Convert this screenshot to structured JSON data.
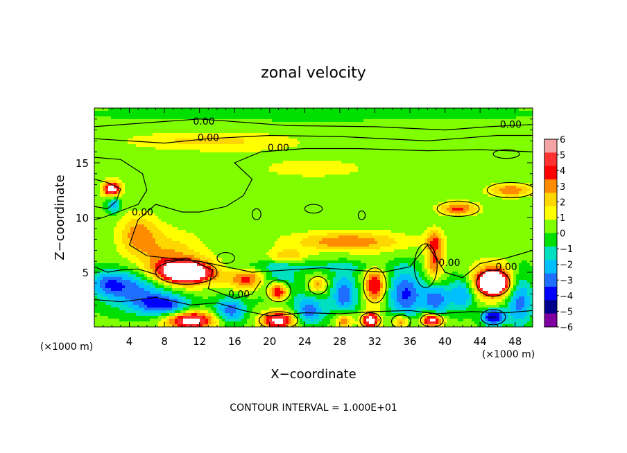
{
  "chart_data": {
    "type": "heatmap",
    "title": "zonal velocity",
    "xlabel": "X−coordinate",
    "ylabel": "Z−coordinate",
    "x_unit": "(×1000 m)",
    "xlim": [
      0,
      50
    ],
    "ylim": [
      0,
      20
    ],
    "xticks": [
      4,
      8,
      12,
      16,
      20,
      24,
      28,
      32,
      36,
      40,
      44,
      48
    ],
    "yticks": [
      5,
      10,
      15
    ],
    "colorbar": {
      "levels": [
        6,
        5,
        4,
        3,
        2,
        1,
        0,
        -1,
        -2,
        -3,
        -4,
        -5,
        -6
      ],
      "labels": [
        "6",
        "5",
        "4",
        "3",
        "2",
        "1",
        "0",
        "−1",
        "−2",
        "−3",
        "−4",
        "−5",
        "−6"
      ],
      "colors": [
        "#f4a4a4",
        "#ff3030",
        "#ff0000",
        "#ff8c00",
        "#ffd700",
        "#ffff00",
        "#7fff00",
        "#00e000",
        "#00e0c0",
        "#00bfff",
        "#1e6fff",
        "#0000ff",
        "#00008b",
        "#8000a0"
      ]
    },
    "contour_label": "0.00",
    "contour_label_positions": [
      [
        12.5,
        18.8
      ],
      [
        13,
        17.3
      ],
      [
        21,
        16.4
      ],
      [
        47.5,
        18.5
      ],
      [
        5.5,
        10.5
      ],
      [
        16.5,
        3.0
      ],
      [
        40.5,
        5.9
      ],
      [
        47,
        5.5
      ]
    ],
    "background_level": 0.3,
    "features": [
      {
        "x": 10.5,
        "z": 5.0,
        "rx": 3.3,
        "rz": 1.0,
        "v": 8
      },
      {
        "x": 8.5,
        "z": 6.0,
        "rx": 4.0,
        "rz": 2.5,
        "v": 3
      },
      {
        "x": 2.0,
        "z": 12.6,
        "rx": 1.0,
        "rz": 0.7,
        "v": 7
      },
      {
        "x": 2.2,
        "z": 11.2,
        "rx": 0.8,
        "rz": 0.9,
        "v": -3
      },
      {
        "x": 5.0,
        "z": 8.5,
        "rx": 2.2,
        "rz": 1.8,
        "v": 3
      },
      {
        "x": 4.5,
        "z": 3.5,
        "rx": 4.0,
        "rz": 1.8,
        "v": -4
      },
      {
        "x": 1.5,
        "z": 4.0,
        "rx": 2.0,
        "rz": 1.0,
        "v": -2.5
      },
      {
        "x": 8.0,
        "z": 2.0,
        "rx": 3.0,
        "rz": 1.0,
        "v": -4.5
      },
      {
        "x": 11.0,
        "z": 0.6,
        "rx": 2.8,
        "rz": 0.8,
        "v": 7
      },
      {
        "x": 15.5,
        "z": 1.5,
        "rx": 1.8,
        "rz": 1.2,
        "v": -4
      },
      {
        "x": 17.5,
        "z": 4.3,
        "rx": 2.2,
        "rz": 1.0,
        "v": 4
      },
      {
        "x": 21.0,
        "z": 3.3,
        "rx": 1.2,
        "rz": 0.9,
        "v": 8
      },
      {
        "x": 21.0,
        "z": 3.8,
        "rx": 2.0,
        "rz": 1.4,
        "v": -4
      },
      {
        "x": 21.0,
        "z": 0.6,
        "rx": 2.0,
        "rz": 0.8,
        "v": 6.5
      },
      {
        "x": 24.5,
        "z": 1.5,
        "rx": 1.8,
        "rz": 1.3,
        "v": -4
      },
      {
        "x": 25.5,
        "z": 3.8,
        "rx": 1.0,
        "rz": 0.7,
        "v": 3
      },
      {
        "x": 28.5,
        "z": 3.0,
        "rx": 1.5,
        "rz": 2.0,
        "v": -4
      },
      {
        "x": 28.5,
        "z": 0.6,
        "rx": 1.0,
        "rz": 0.7,
        "v": 4
      },
      {
        "x": 32.0,
        "z": 3.8,
        "rx": 1.2,
        "rz": 1.6,
        "v": 5
      },
      {
        "x": 31.5,
        "z": 0.6,
        "rx": 1.0,
        "rz": 0.7,
        "v": 7
      },
      {
        "x": 35.5,
        "z": 3.0,
        "rx": 2.0,
        "rz": 2.2,
        "v": -4.5
      },
      {
        "x": 35.0,
        "z": 0.5,
        "rx": 1.0,
        "rz": 0.6,
        "v": 4
      },
      {
        "x": 38.5,
        "z": 0.6,
        "rx": 1.2,
        "rz": 0.6,
        "v": 7
      },
      {
        "x": 39.0,
        "z": 2.5,
        "rx": 1.5,
        "rz": 1.5,
        "v": -4
      },
      {
        "x": 38.8,
        "z": 6.0,
        "rx": 1.0,
        "rz": 1.8,
        "v": 4
      },
      {
        "x": 38.8,
        "z": 8.0,
        "rx": 1.0,
        "rz": 1.0,
        "v": 2.5
      },
      {
        "x": 42.0,
        "z": 3.0,
        "rx": 1.5,
        "rz": 1.5,
        "v": -3.5
      },
      {
        "x": 45.5,
        "z": 4.0,
        "rx": 1.5,
        "rz": 0.9,
        "v": 8
      },
      {
        "x": 45.5,
        "z": 4.2,
        "rx": 2.5,
        "rz": 1.6,
        "v": 5
      },
      {
        "x": 45.5,
        "z": 0.9,
        "rx": 1.3,
        "rz": 0.7,
        "v": -6
      },
      {
        "x": 48.5,
        "z": 2.5,
        "rx": 1.5,
        "rz": 2.5,
        "v": -4
      },
      {
        "x": 29.0,
        "z": 7.8,
        "rx": 6.5,
        "rz": 0.9,
        "v": 3.5
      },
      {
        "x": 41.5,
        "z": 10.8,
        "rx": 2.2,
        "rz": 0.6,
        "v": 4
      },
      {
        "x": 47.5,
        "z": 12.5,
        "rx": 2.5,
        "rz": 0.6,
        "v": 3.5
      },
      {
        "x": 22.0,
        "z": 6.5,
        "rx": 2.0,
        "rz": 0.6,
        "v": 2.5
      },
      {
        "x": 25.0,
        "z": 19.5,
        "rx": 26.0,
        "rz": 0.6,
        "v": -1
      },
      {
        "x": 13.0,
        "z": 17.0,
        "rx": 9.0,
        "rz": 0.8,
        "v": 2
      },
      {
        "x": 25.0,
        "z": 14.5,
        "rx": 14.0,
        "rz": 2.0,
        "v": 0.8
      },
      {
        "x": 24.0,
        "z": 5.5,
        "rx": 10.0,
        "rz": 0.5,
        "v": -1.5
      }
    ],
    "contours": [
      [
        [
          0,
          18.3
        ],
        [
          5,
          18.6
        ],
        [
          12,
          19.0
        ],
        [
          22,
          18.4
        ],
        [
          32,
          18.3
        ],
        [
          40,
          18.0
        ],
        [
          45,
          18.3
        ],
        [
          50,
          18.5
        ]
      ],
      [
        [
          0,
          17.2
        ],
        [
          8,
          16.8
        ],
        [
          13,
          17.2
        ],
        [
          20,
          17.5
        ],
        [
          28,
          17.4
        ],
        [
          38,
          17.0
        ],
        [
          46,
          17.5
        ],
        [
          50,
          17.5
        ]
      ],
      [
        [
          0,
          15.5
        ],
        [
          3,
          15.3
        ],
        [
          5.5,
          14.0
        ],
        [
          6,
          12.5
        ],
        [
          5,
          11.2
        ],
        [
          3,
          10.6
        ],
        [
          1,
          10.0
        ],
        [
          0,
          9.8
        ]
      ],
      [
        [
          50,
          16.0
        ],
        [
          44,
          16.2
        ],
        [
          38,
          16.1
        ],
        [
          30,
          16.3
        ],
        [
          24,
          16.3
        ],
        [
          19,
          16.0
        ],
        [
          16,
          15.0
        ],
        [
          18,
          13.5
        ],
        [
          17,
          12.0
        ],
        [
          15,
          11.0
        ],
        [
          12,
          10.5
        ],
        [
          10,
          10.5
        ],
        [
          7,
          11.2
        ],
        [
          5,
          9.8
        ],
        [
          4,
          7.5
        ],
        [
          6,
          6.5
        ],
        [
          12,
          6.0
        ],
        [
          18,
          5.0
        ],
        [
          22,
          5.2
        ],
        [
          26,
          5.4
        ],
        [
          33,
          5.0
        ],
        [
          36,
          5.5
        ],
        [
          38,
          7.5
        ],
        [
          40,
          5.0
        ],
        [
          42,
          4.5
        ],
        [
          44,
          5.8
        ],
        [
          47,
          6.3
        ],
        [
          50,
          7.0
        ]
      ],
      [
        [
          0,
          5.5
        ],
        [
          1.5,
          5.0
        ],
        [
          3,
          5.2
        ],
        [
          5,
          5.3
        ],
        [
          7,
          4.8
        ]
      ],
      [
        [
          8,
          6.0
        ],
        [
          10.5,
          6.3
        ],
        [
          13.5,
          5.2
        ],
        [
          13,
          3.5
        ],
        [
          16,
          2.6
        ],
        [
          18,
          3.0
        ],
        [
          19,
          4.2
        ]
      ],
      [
        [
          0,
          2.5
        ],
        [
          3,
          2.3
        ],
        [
          7,
          2.7
        ],
        [
          11,
          2.0
        ],
        [
          14,
          2.2
        ],
        [
          17,
          1.5
        ],
        [
          20,
          1.0
        ],
        [
          24,
          1.3
        ],
        [
          28,
          1.2
        ],
        [
          32,
          1.4
        ],
        [
          36,
          1.5
        ],
        [
          39,
          1.2
        ],
        [
          43,
          1.4
        ],
        [
          47,
          1.3
        ],
        [
          50,
          1.5
        ]
      ],
      [
        [
          0,
          13.5
        ],
        [
          1.5,
          13.2
        ],
        [
          3,
          12.6
        ],
        [
          2.5,
          11.5
        ],
        [
          1.5,
          10.8
        ],
        [
          0,
          11.0
        ]
      ]
    ],
    "closed_contours": [
      [
        10.5,
        5.0,
        3.5,
        1.1
      ],
      [
        21,
        3.3,
        1.4,
        1.0
      ],
      [
        21,
        0.6,
        2.2,
        0.8
      ],
      [
        25.5,
        3.8,
        1.1,
        0.8
      ],
      [
        32,
        3.8,
        1.3,
        1.6
      ],
      [
        31.5,
        0.6,
        1.2,
        0.7
      ],
      [
        35,
        0.5,
        1.1,
        0.6
      ],
      [
        38.5,
        0.6,
        1.3,
        0.6
      ],
      [
        45.5,
        4.0,
        1.9,
        1.2
      ],
      [
        45.5,
        0.9,
        1.4,
        0.7
      ],
      [
        37.8,
        5.6,
        1.3,
        2.0
      ],
      [
        25,
        10.8,
        1.0,
        0.4
      ],
      [
        18.5,
        10.3,
        0.5,
        0.5
      ],
      [
        41.5,
        10.8,
        2.4,
        0.7
      ],
      [
        47.5,
        12.5,
        2.7,
        0.7
      ],
      [
        47.0,
        15.8,
        1.5,
        0.4
      ],
      [
        30.5,
        10.2,
        0.4,
        0.4
      ],
      [
        15.0,
        6.3,
        1.0,
        0.5
      ]
    ]
  },
  "footer": {
    "contour_interval": "CONTOUR INTERVAL = 1.000E+01"
  }
}
